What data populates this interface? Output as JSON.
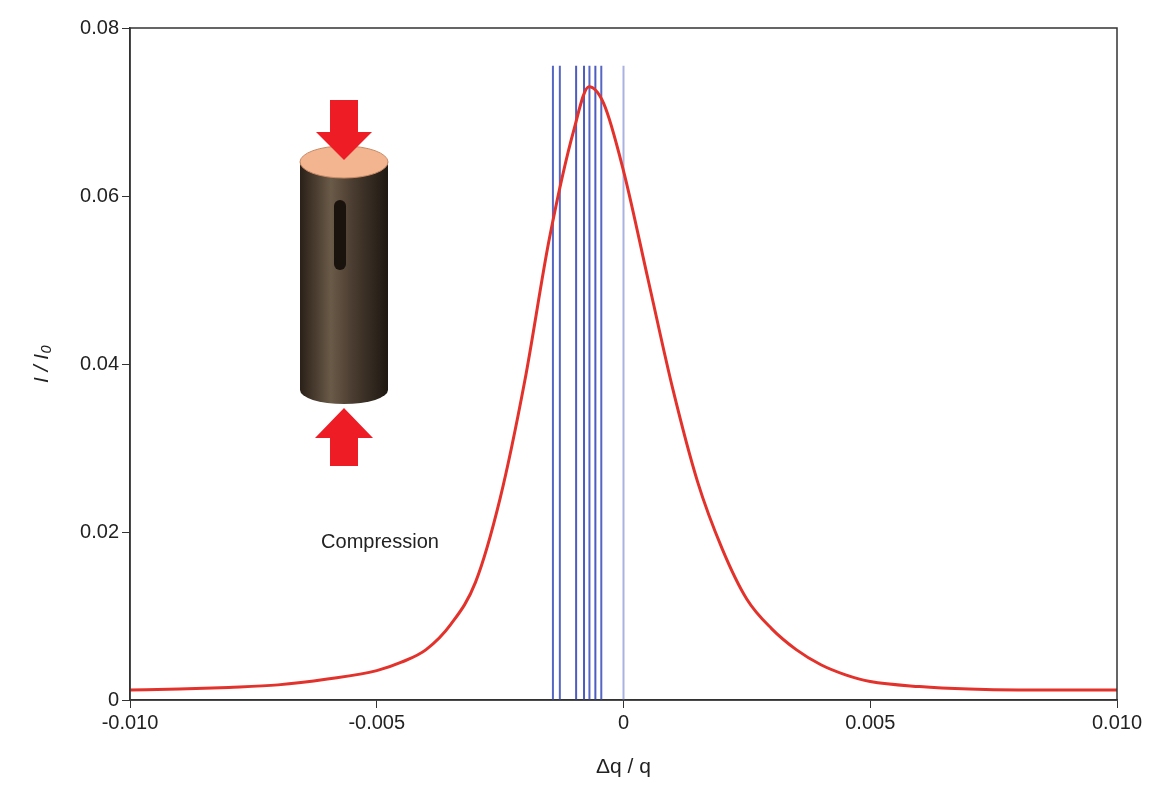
{
  "chart_data": {
    "type": "line",
    "x_label": "Δq / q",
    "y_label": "I / I₀",
    "annotations": [
      "Compression"
    ],
    "xlim": [
      -0.01,
      0.01
    ],
    "xticks": [
      {
        "value": -0.01,
        "label": "-0.010"
      },
      -0.005,
      0,
      0.005,
      {
        "value": 0.01,
        "label": "0.010"
      }
    ],
    "ylim": [
      0,
      0.08
    ],
    "yticks": [
      0,
      0.02,
      0.04,
      0.06,
      0.08
    ],
    "grid": false,
    "tick_labels": true,
    "series": [
      {
        "color": "#e2322b",
        "x": [
          -0.01,
          -0.009,
          -0.008,
          -0.007,
          -0.006,
          -0.005,
          -0.0045,
          -0.004,
          -0.0035,
          -0.003,
          -0.0025,
          -0.002,
          -0.0015,
          -0.001,
          -0.0007,
          -0.0004,
          0,
          0.0005,
          0.001,
          0.0015,
          0.002,
          0.0025,
          0.003,
          0.0035,
          0.004,
          0.0045,
          0.005,
          0.006,
          0.007,
          0.008,
          0.009,
          0.01
        ],
        "values": [
          0.0012,
          0.0013,
          0.0015,
          0.0018,
          0.0025,
          0.0035,
          0.0045,
          0.006,
          0.009,
          0.014,
          0.024,
          0.038,
          0.055,
          0.068,
          0.073,
          0.071,
          0.063,
          0.05,
          0.037,
          0.026,
          0.018,
          0.012,
          0.0085,
          0.006,
          0.0042,
          0.003,
          0.0022,
          0.0016,
          0.0013,
          0.0012,
          0.0012,
          0.0012
        ]
      }
    ],
    "vlines": {
      "x": [
        -0.00143,
        -0.00129,
        -0.00096,
        -0.0008,
        -0.00069,
        -0.00057,
        -0.00045,
        0
      ],
      "height": 0.0755,
      "colors": [
        "#5566c4",
        "#5566c4",
        "#4c5cbf",
        "#4c5cbf",
        "#5566c4",
        "#4c5cbf",
        "#5566c4",
        "#aab2e2"
      ]
    }
  }
}
